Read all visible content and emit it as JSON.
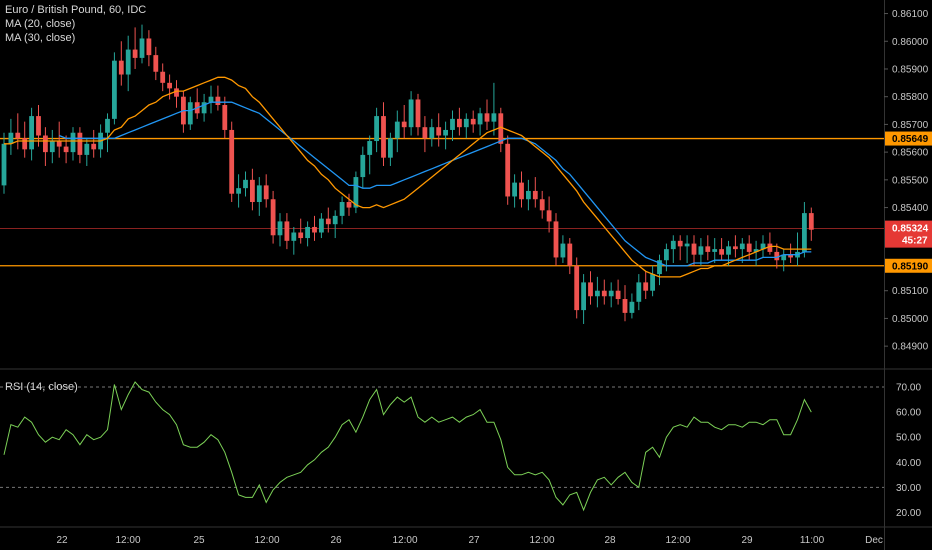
{
  "header": {
    "symbol_line": "Euro / British Pound, 60, IDC",
    "ma20_label": "MA (20, close)",
    "ma30_label": "MA (30, close)",
    "rsi_label": "RSI (14, close)"
  },
  "colors": {
    "background": "#000000",
    "candle_up": "#26a69a",
    "candle_down": "#ef5350",
    "ma20": "#ff9800",
    "ma30": "#2196f3",
    "rsi": "#7cd157",
    "hline": "#ff9800",
    "last_price": "#e53935",
    "separator": "#2a2a2a"
  },
  "chart_data": [
    {
      "type": "candlestick",
      "title": "Euro / British Pound, 60, IDC",
      "ylim": [
        0.8485,
        0.8612
      ],
      "y_ticks": [
        "0.86100",
        "0.86000",
        "0.85900",
        "0.85800",
        "0.85700",
        "0.85600",
        "0.85500",
        "0.85400",
        "0.85100",
        "0.85000",
        "0.84900"
      ],
      "x_ticks": [
        "22",
        "12:00",
        "25",
        "12:00",
        "26",
        "12:00",
        "27",
        "12:00",
        "28",
        "12:00",
        "29",
        "11:00",
        "Dec"
      ],
      "horizontal_lines": [
        {
          "value": 0.85649,
          "label": "0.85649"
        },
        {
          "value": 0.8519,
          "label": "0.85190"
        }
      ],
      "last_price": {
        "value": 0.85324,
        "label": "0.85324",
        "countdown": "45:27"
      },
      "candles": [
        [
          0.8548,
          0.8567,
          0.8545,
          0.8563
        ],
        [
          0.8563,
          0.8572,
          0.8559,
          0.8567
        ],
        [
          0.8567,
          0.8574,
          0.8561,
          0.8565
        ],
        [
          0.8565,
          0.8571,
          0.8558,
          0.8561
        ],
        [
          0.8561,
          0.8576,
          0.8557,
          0.8573
        ],
        [
          0.8573,
          0.8577,
          0.8562,
          0.8566
        ],
        [
          0.8566,
          0.8569,
          0.8555,
          0.856
        ],
        [
          0.856,
          0.8568,
          0.8556,
          0.8564
        ],
        [
          0.8564,
          0.8571,
          0.8558,
          0.8562
        ],
        [
          0.8562,
          0.8566,
          0.8556,
          0.856
        ],
        [
          0.856,
          0.8569,
          0.8557,
          0.8567
        ],
        [
          0.8567,
          0.8569,
          0.8556,
          0.8559
        ],
        [
          0.8559,
          0.8565,
          0.8555,
          0.8563
        ],
        [
          0.8563,
          0.8568,
          0.8558,
          0.8561
        ],
        [
          0.8561,
          0.857,
          0.8558,
          0.8567
        ],
        [
          0.8567,
          0.8574,
          0.856,
          0.8572
        ],
        [
          0.8572,
          0.8596,
          0.857,
          0.8593
        ],
        [
          0.8593,
          0.86,
          0.8584,
          0.8588
        ],
        [
          0.8588,
          0.8602,
          0.8582,
          0.8597
        ],
        [
          0.8597,
          0.8605,
          0.859,
          0.8594
        ],
        [
          0.8594,
          0.8606,
          0.8592,
          0.8601
        ],
        [
          0.8601,
          0.8604,
          0.8591,
          0.8595
        ],
        [
          0.8595,
          0.8598,
          0.8586,
          0.8589
        ],
        [
          0.8589,
          0.8592,
          0.8582,
          0.8585
        ],
        [
          0.8585,
          0.8588,
          0.8579,
          0.8583
        ],
        [
          0.8583,
          0.8586,
          0.8576,
          0.858
        ],
        [
          0.858,
          0.8582,
          0.8567,
          0.857
        ],
        [
          0.857,
          0.858,
          0.8568,
          0.8578
        ],
        [
          0.8578,
          0.8583,
          0.8572,
          0.8574
        ],
        [
          0.8574,
          0.8581,
          0.8571,
          0.8578
        ],
        [
          0.8578,
          0.8584,
          0.8574,
          0.858
        ],
        [
          0.858,
          0.8584,
          0.8575,
          0.8577
        ],
        [
          0.8577,
          0.858,
          0.8565,
          0.8568
        ],
        [
          0.8568,
          0.8571,
          0.8542,
          0.8545
        ],
        [
          0.8545,
          0.8552,
          0.854,
          0.8547
        ],
        [
          0.8547,
          0.8553,
          0.8544,
          0.855
        ],
        [
          0.855,
          0.8554,
          0.8539,
          0.8542
        ],
        [
          0.8542,
          0.8551,
          0.8537,
          0.8548
        ],
        [
          0.8548,
          0.8552,
          0.854,
          0.8543
        ],
        [
          0.8543,
          0.8546,
          0.8527,
          0.853
        ],
        [
          0.853,
          0.8538,
          0.8526,
          0.8535
        ],
        [
          0.8535,
          0.8538,
          0.8525,
          0.8528
        ],
        [
          0.8528,
          0.8533,
          0.8523,
          0.8531
        ],
        [
          0.8531,
          0.8536,
          0.8527,
          0.8529
        ],
        [
          0.8529,
          0.8535,
          0.8526,
          0.8533
        ],
        [
          0.8533,
          0.8537,
          0.8528,
          0.8531
        ],
        [
          0.8531,
          0.8538,
          0.8529,
          0.8536
        ],
        [
          0.8536,
          0.854,
          0.8531,
          0.8534
        ],
        [
          0.8534,
          0.8539,
          0.8529,
          0.8537
        ],
        [
          0.8537,
          0.8544,
          0.8534,
          0.8542
        ],
        [
          0.8542,
          0.8545,
          0.8537,
          0.854
        ],
        [
          0.854,
          0.8553,
          0.8538,
          0.8551
        ],
        [
          0.8551,
          0.8562,
          0.8547,
          0.8559
        ],
        [
          0.8559,
          0.8566,
          0.8552,
          0.8564
        ],
        [
          0.8564,
          0.8576,
          0.856,
          0.8573
        ],
        [
          0.8573,
          0.8578,
          0.8555,
          0.8558
        ],
        [
          0.8558,
          0.8567,
          0.8555,
          0.8565
        ],
        [
          0.8565,
          0.8575,
          0.856,
          0.8571
        ],
        [
          0.8571,
          0.8577,
          0.8565,
          0.8569
        ],
        [
          0.8569,
          0.8582,
          0.8566,
          0.8579
        ],
        [
          0.8579,
          0.8581,
          0.8566,
          0.8569
        ],
        [
          0.8569,
          0.8573,
          0.856,
          0.8565
        ],
        [
          0.8565,
          0.8572,
          0.8562,
          0.8569
        ],
        [
          0.8569,
          0.8574,
          0.8562,
          0.8566
        ],
        [
          0.8566,
          0.8571,
          0.8561,
          0.8568
        ],
        [
          0.8568,
          0.8575,
          0.8564,
          0.8572
        ],
        [
          0.8572,
          0.8576,
          0.8566,
          0.8569
        ],
        [
          0.8569,
          0.8574,
          0.8565,
          0.8572
        ],
        [
          0.8572,
          0.8575,
          0.8567,
          0.857
        ],
        [
          0.857,
          0.8576,
          0.8566,
          0.8574
        ],
        [
          0.8574,
          0.8579,
          0.8568,
          0.8571
        ],
        [
          0.8571,
          0.8585,
          0.8566,
          0.8574
        ],
        [
          0.8574,
          0.8576,
          0.856,
          0.8563
        ],
        [
          0.8563,
          0.8566,
          0.8541,
          0.8544
        ],
        [
          0.8544,
          0.8552,
          0.854,
          0.8549
        ],
        [
          0.8549,
          0.8553,
          0.854,
          0.8543
        ],
        [
          0.8543,
          0.855,
          0.8539,
          0.8546
        ],
        [
          0.8546,
          0.8551,
          0.854,
          0.8543
        ],
        [
          0.8543,
          0.8546,
          0.8536,
          0.8539
        ],
        [
          0.8539,
          0.8544,
          0.8531,
          0.8535
        ],
        [
          0.8535,
          0.8538,
          0.8519,
          0.8522
        ],
        [
          0.8522,
          0.853,
          0.852,
          0.8527
        ],
        [
          0.8527,
          0.8529,
          0.8516,
          0.8519
        ],
        [
          0.8519,
          0.8522,
          0.85,
          0.8503
        ],
        [
          0.8503,
          0.8516,
          0.8498,
          0.8513
        ],
        [
          0.8513,
          0.8517,
          0.8505,
          0.8508
        ],
        [
          0.8508,
          0.8515,
          0.8504,
          0.851
        ],
        [
          0.851,
          0.8514,
          0.8505,
          0.8508
        ],
        [
          0.8508,
          0.8513,
          0.8504,
          0.851
        ],
        [
          0.851,
          0.8514,
          0.8505,
          0.8507
        ],
        [
          0.8507,
          0.8512,
          0.8499,
          0.8502
        ],
        [
          0.8502,
          0.8509,
          0.85,
          0.8506
        ],
        [
          0.8506,
          0.8516,
          0.8503,
          0.8513
        ],
        [
          0.8513,
          0.8517,
          0.8507,
          0.851
        ],
        [
          0.851,
          0.8519,
          0.8508,
          0.8516
        ],
        [
          0.8516,
          0.8523,
          0.8512,
          0.8521
        ],
        [
          0.8521,
          0.8527,
          0.8517,
          0.8525
        ],
        [
          0.8525,
          0.853,
          0.852,
          0.8528
        ],
        [
          0.8528,
          0.853,
          0.8521,
          0.8526
        ],
        [
          0.8526,
          0.853,
          0.852,
          0.8527
        ],
        [
          0.8527,
          0.853,
          0.8519,
          0.8523
        ],
        [
          0.8523,
          0.8529,
          0.8519,
          0.8526
        ],
        [
          0.8526,
          0.853,
          0.8521,
          0.8524
        ],
        [
          0.8524,
          0.8529,
          0.852,
          0.8525
        ],
        [
          0.8525,
          0.8529,
          0.8521,
          0.8523
        ],
        [
          0.8523,
          0.8528,
          0.8519,
          0.8526
        ],
        [
          0.8526,
          0.853,
          0.8522,
          0.8525
        ],
        [
          0.8525,
          0.8529,
          0.852,
          0.8527
        ],
        [
          0.8527,
          0.853,
          0.8521,
          0.8524
        ],
        [
          0.8524,
          0.8528,
          0.8519,
          0.8525
        ],
        [
          0.8525,
          0.853,
          0.8522,
          0.8527
        ],
        [
          0.8527,
          0.8531,
          0.8523,
          0.8524
        ],
        [
          0.8524,
          0.8527,
          0.8518,
          0.8521
        ],
        [
          0.8521,
          0.8525,
          0.8517,
          0.8523
        ],
        [
          0.8523,
          0.8527,
          0.852,
          0.8522
        ],
        [
          0.8522,
          0.8531,
          0.8519,
          0.8524
        ],
        [
          0.8524,
          0.8542,
          0.8522,
          0.8538
        ],
        [
          0.8538,
          0.854,
          0.8528,
          0.8532
        ]
      ],
      "series": [
        {
          "name": "MA (20, close)",
          "values": [
            0.8563,
            0.8563,
            0.8564,
            0.8564,
            0.8564,
            0.8564,
            0.8564,
            0.8564,
            0.8564,
            0.8564,
            0.8564,
            0.8564,
            0.8564,
            0.8564,
            0.8564,
            0.8565,
            0.8568,
            0.8569,
            0.8572,
            0.8573,
            0.8575,
            0.8577,
            0.8578,
            0.858,
            0.8581,
            0.8582,
            0.8582,
            0.8583,
            0.8584,
            0.8585,
            0.8586,
            0.8587,
            0.8587,
            0.8586,
            0.8584,
            0.8583,
            0.858,
            0.8578,
            0.8575,
            0.8572,
            0.8569,
            0.8566,
            0.8563,
            0.856,
            0.8557,
            0.8555,
            0.8552,
            0.855,
            0.8547,
            0.8545,
            0.8543,
            0.8541,
            0.854,
            0.854,
            0.8541,
            0.854,
            0.8541,
            0.8542,
            0.8543,
            0.8545,
            0.8547,
            0.8549,
            0.8551,
            0.8553,
            0.8555,
            0.8557,
            0.8559,
            0.8561,
            0.8563,
            0.8565,
            0.8567,
            0.8568,
            0.8569,
            0.8568,
            0.8567,
            0.8566,
            0.8564,
            0.8562,
            0.856,
            0.8558,
            0.8555,
            0.8552,
            0.8549,
            0.8546,
            0.8542,
            0.8539,
            0.8536,
            0.8533,
            0.853,
            0.8527,
            0.8524,
            0.8521,
            0.8519,
            0.8517,
            0.8516,
            0.8515,
            0.8515,
            0.8515,
            0.8515,
            0.8516,
            0.8517,
            0.8518,
            0.8518,
            0.8519,
            0.8519,
            0.852,
            0.8521,
            0.8522,
            0.8523,
            0.8524,
            0.8525,
            0.8526,
            0.8526,
            0.8525,
            0.8525,
            0.8525,
            0.8525,
            0.8525
          ]
        },
        {
          "name": "MA (30, close)",
          "values": [
            null,
            null,
            null,
            null,
            null,
            null,
            null,
            null,
            0.8566,
            0.8565,
            0.8565,
            0.8565,
            0.8565,
            0.8565,
            0.8565,
            0.8565,
            0.8565,
            0.8566,
            0.8567,
            0.8568,
            0.8569,
            0.857,
            0.8571,
            0.8572,
            0.8573,
            0.8574,
            0.8575,
            0.8575,
            0.8576,
            0.8577,
            0.8578,
            0.8578,
            0.8578,
            0.8578,
            0.8577,
            0.8576,
            0.8575,
            0.8574,
            0.8572,
            0.857,
            0.8568,
            0.8566,
            0.8564,
            0.8562,
            0.856,
            0.8558,
            0.8556,
            0.8554,
            0.8552,
            0.855,
            0.8548,
            0.8548,
            0.8547,
            0.8547,
            0.8548,
            0.8548,
            0.8548,
            0.8549,
            0.855,
            0.8551,
            0.8552,
            0.8553,
            0.8554,
            0.8555,
            0.8556,
            0.8557,
            0.8558,
            0.8559,
            0.856,
            0.8561,
            0.8562,
            0.8563,
            0.8564,
            0.8565,
            0.8565,
            0.8565,
            0.8564,
            0.8563,
            0.8561,
            0.8559,
            0.8557,
            0.8554,
            0.8552,
            0.8549,
            0.8546,
            0.8543,
            0.854,
            0.8537,
            0.8534,
            0.8531,
            0.8528,
            0.8526,
            0.8524,
            0.8522,
            0.8521,
            0.852,
            0.8519,
            0.8519,
            0.8519,
            0.8519,
            0.852,
            0.852,
            0.852,
            0.8521,
            0.8521,
            0.8521,
            0.8521,
            0.8521,
            0.8521,
            0.8521,
            0.8522,
            0.8522,
            0.8522,
            0.8523,
            0.8523,
            0.8523,
            0.8524,
            0.8524
          ]
        }
      ]
    },
    {
      "type": "line",
      "title": "RSI (14, close)",
      "ylim": [
        15,
        76
      ],
      "y_ticks": [
        "70.00",
        "60.00",
        "50.00",
        "40.00",
        "30.00",
        "20.00"
      ],
      "bands": [
        70,
        30
      ],
      "series": [
        {
          "name": "RSI (14, close)",
          "values": [
            43,
            55,
            54,
            58,
            56,
            51,
            48,
            50,
            49,
            53,
            51,
            47,
            51,
            49,
            50,
            53,
            71,
            61,
            67,
            72,
            69,
            68,
            64,
            61,
            59,
            55,
            47,
            46,
            46,
            48,
            51,
            49,
            44,
            36,
            27,
            26,
            26,
            31,
            24,
            29,
            32,
            34,
            35,
            36,
            39,
            41,
            44,
            46,
            50,
            55,
            57,
            52,
            58,
            65,
            69,
            59,
            63,
            66,
            64,
            66,
            58,
            56,
            58,
            56,
            57,
            58,
            56,
            58,
            59,
            61,
            56,
            56,
            49,
            38,
            35,
            35,
            36,
            35,
            36,
            33,
            26,
            23,
            27,
            28,
            21,
            28,
            33,
            34,
            31,
            34,
            36,
            32,
            30,
            44,
            46,
            42,
            50,
            54,
            55,
            54,
            58,
            56,
            56,
            54,
            53,
            55,
            55,
            54,
            56,
            56,
            55,
            57,
            57,
            51,
            51,
            57,
            65,
            60
          ]
        }
      ]
    }
  ]
}
